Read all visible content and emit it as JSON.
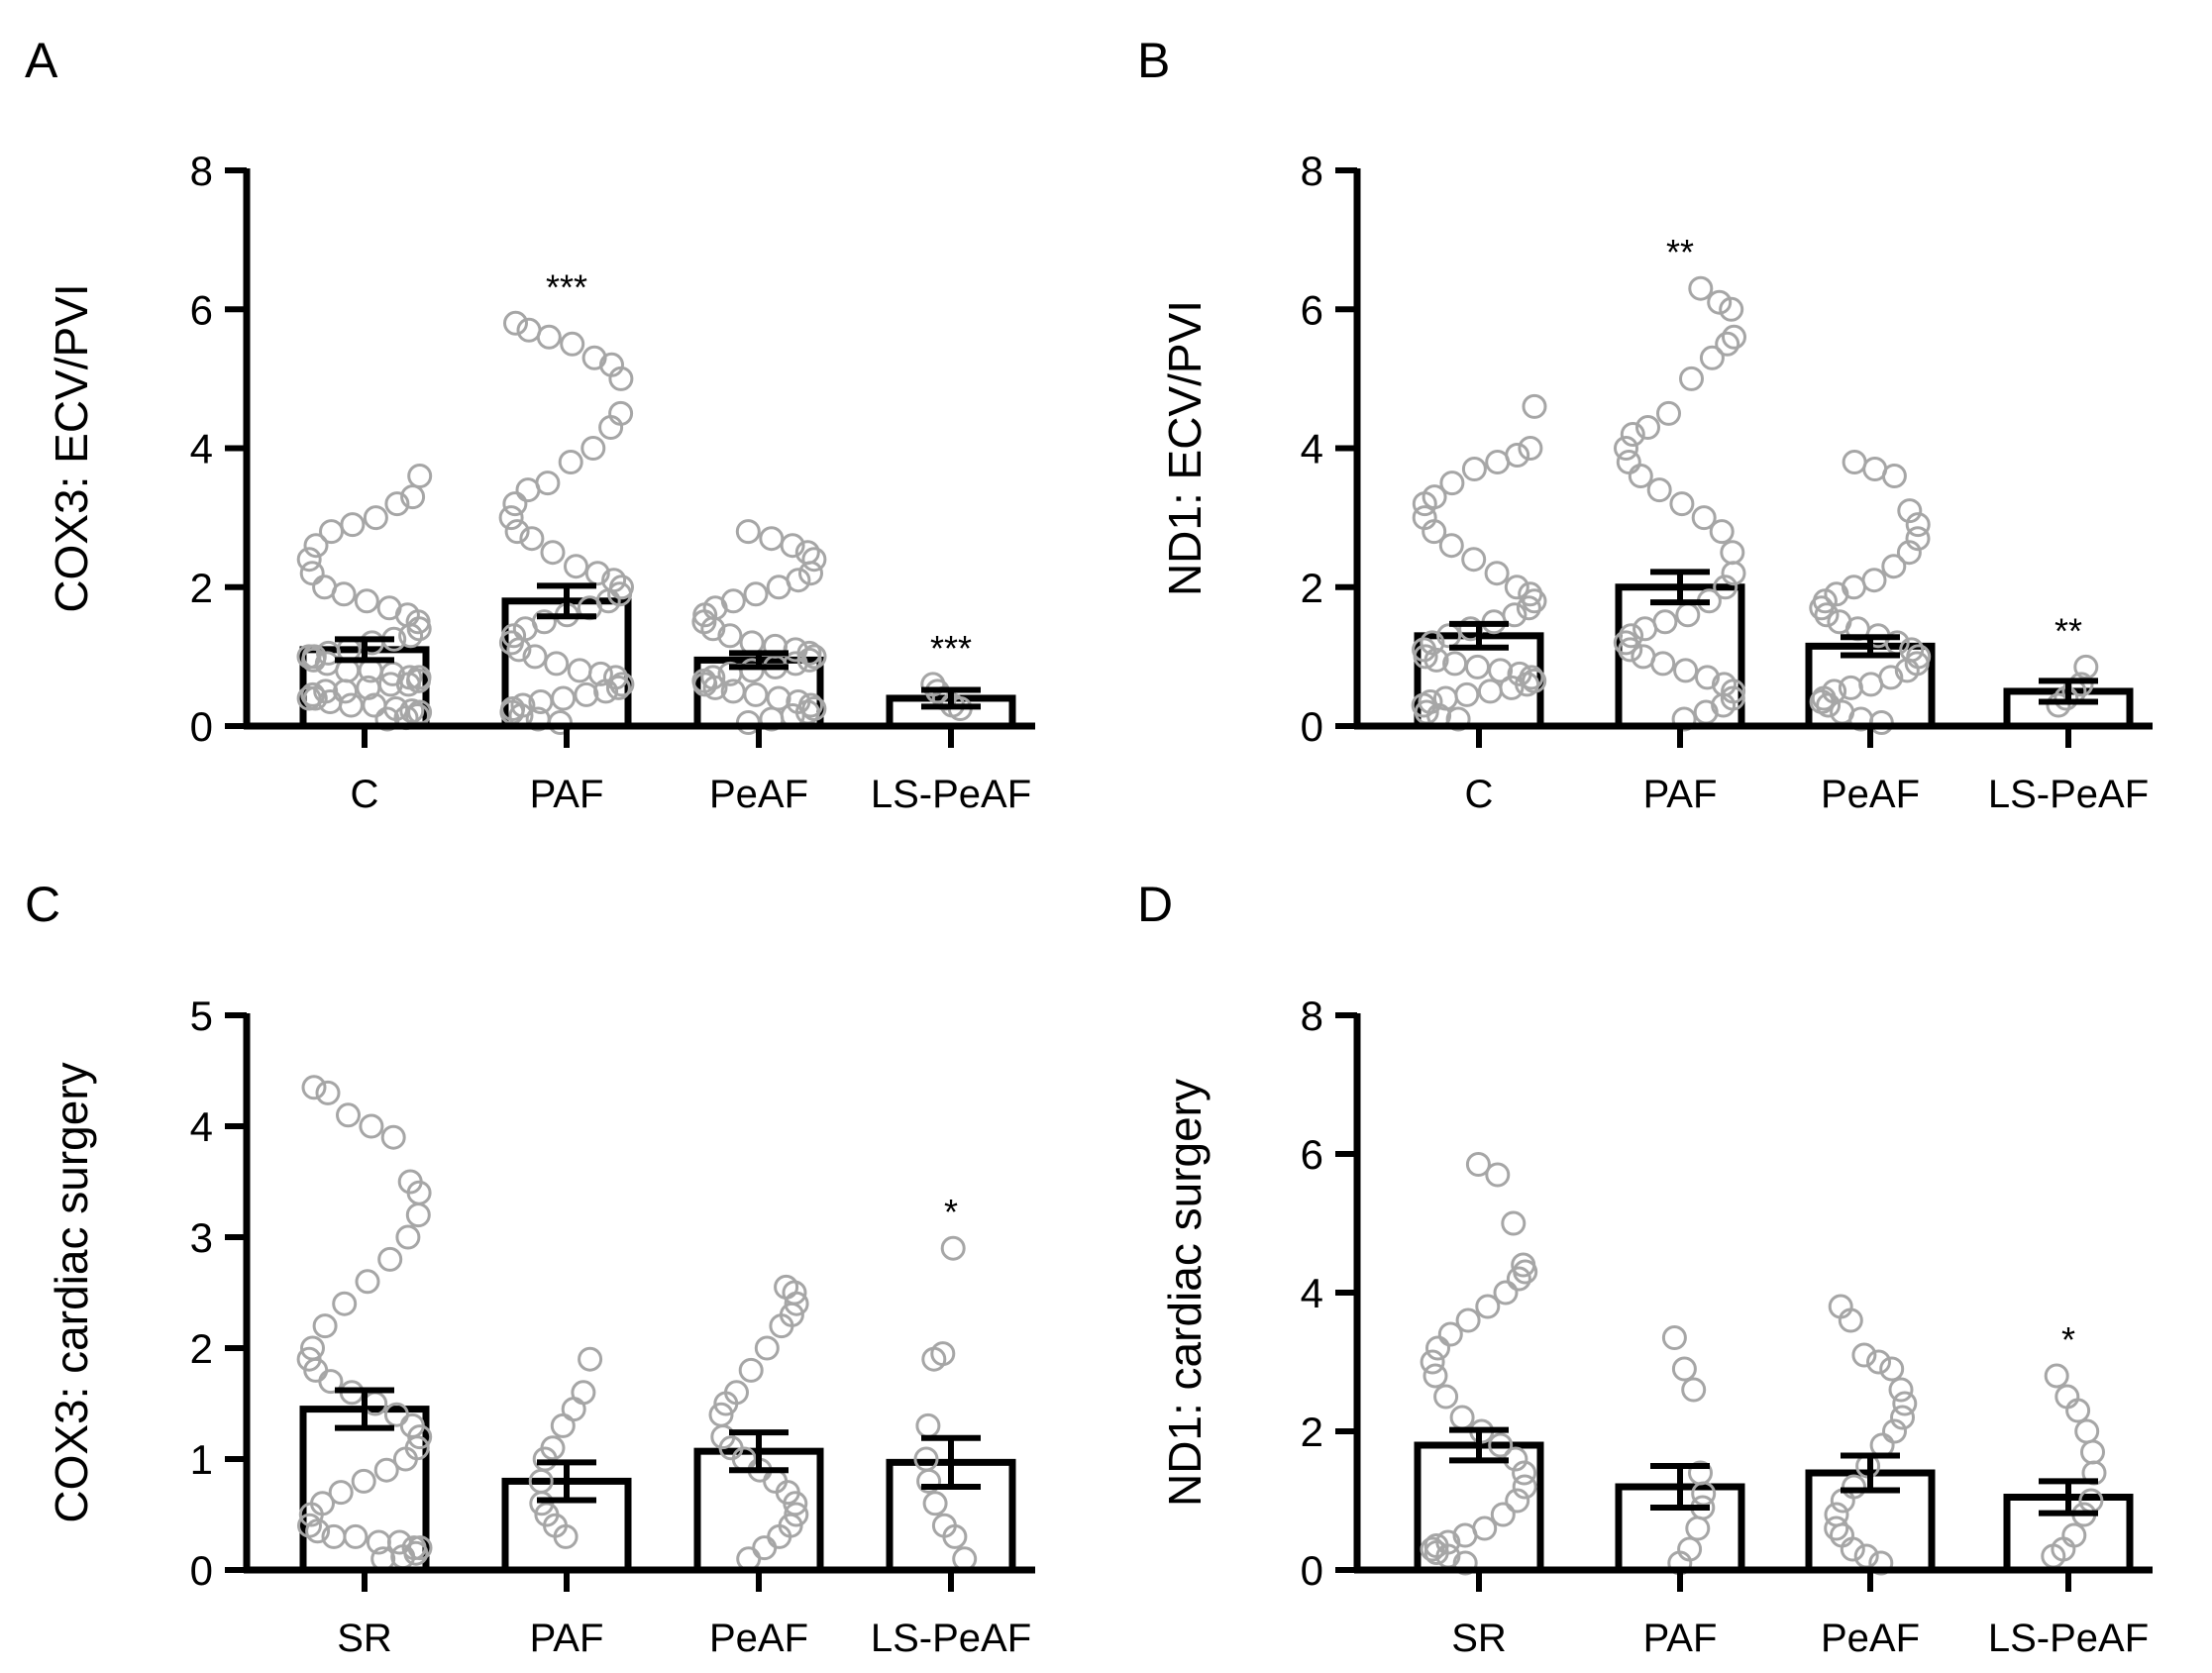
{
  "chart_data": [
    {
      "type": "bar",
      "panel": "A",
      "ylabel": "COX3: ECV/PVI",
      "ylim": [
        0,
        8
      ],
      "yticks": [
        0,
        2,
        4,
        6,
        8
      ],
      "categories": [
        "C",
        "PAF",
        "PeAF",
        "LS-PeAF"
      ],
      "means": [
        1.1,
        1.8,
        0.95,
        0.4
      ],
      "sem": [
        0.15,
        0.22,
        0.1,
        0.12
      ],
      "significance": [
        "",
        "***",
        "",
        "***"
      ],
      "points": [
        [
          0.1,
          0.12,
          0.15,
          0.2,
          0.22,
          0.25,
          0.3,
          0.3,
          0.35,
          0.4,
          0.4,
          0.45,
          0.5,
          0.5,
          0.55,
          0.6,
          0.6,
          0.65,
          0.7,
          0.7,
          0.75,
          0.8,
          0.8,
          0.9,
          0.95,
          1.0,
          1.0,
          1.05,
          1.1,
          1.2,
          1.25,
          1.3,
          1.4,
          1.5,
          1.6,
          1.7,
          1.8,
          1.9,
          2.0,
          2.2,
          2.4,
          2.6,
          2.8,
          2.9,
          3.0,
          3.2,
          3.3,
          3.6
        ],
        [
          0.05,
          0.1,
          0.15,
          0.2,
          0.25,
          0.3,
          0.35,
          0.4,
          0.45,
          0.5,
          0.55,
          0.6,
          0.7,
          0.75,
          0.8,
          0.9,
          1.0,
          1.1,
          1.2,
          1.3,
          1.4,
          1.5,
          1.6,
          1.7,
          1.8,
          1.9,
          2.0,
          2.1,
          2.2,
          2.3,
          2.5,
          2.7,
          2.8,
          3.0,
          3.2,
          3.4,
          3.5,
          3.8,
          4.0,
          4.3,
          4.5,
          5.0,
          5.2,
          5.3,
          5.5,
          5.6,
          5.7,
          5.8
        ],
        [
          0.05,
          0.1,
          0.15,
          0.2,
          0.25,
          0.3,
          0.35,
          0.4,
          0.45,
          0.5,
          0.55,
          0.6,
          0.65,
          0.7,
          0.75,
          0.8,
          0.85,
          0.9,
          0.95,
          1.0,
          1.05,
          1.1,
          1.15,
          1.2,
          1.3,
          1.4,
          1.5,
          1.6,
          1.7,
          1.8,
          1.9,
          2.0,
          2.1,
          2.2,
          2.4,
          2.5,
          2.6,
          2.7,
          2.8
        ],
        [
          0.25,
          0.3,
          0.4,
          0.5,
          0.6
        ]
      ]
    },
    {
      "type": "bar",
      "panel": "B",
      "ylabel": "ND1: ECV/PVI",
      "ylim": [
        0,
        8
      ],
      "yticks": [
        0,
        2,
        4,
        6,
        8
      ],
      "categories": [
        "C",
        "PAF",
        "PeAF",
        "LS-PeAF"
      ],
      "means": [
        1.3,
        2.0,
        1.15,
        0.5
      ],
      "sem": [
        0.17,
        0.22,
        0.13,
        0.15
      ],
      "significance": [
        "",
        "**",
        "",
        "**"
      ],
      "points": [
        [
          0.1,
          0.15,
          0.2,
          0.3,
          0.35,
          0.4,
          0.45,
          0.5,
          0.55,
          0.6,
          0.65,
          0.7,
          0.75,
          0.8,
          0.85,
          0.9,
          0.95,
          1.0,
          1.1,
          1.2,
          1.3,
          1.4,
          1.5,
          1.6,
          1.7,
          1.8,
          1.9,
          2.0,
          2.2,
          2.4,
          2.6,
          2.8,
          3.0,
          3.2,
          3.3,
          3.5,
          3.7,
          3.8,
          3.9,
          4.0,
          4.6
        ],
        [
          0.1,
          0.2,
          0.3,
          0.4,
          0.5,
          0.6,
          0.7,
          0.8,
          0.9,
          1.0,
          1.1,
          1.2,
          1.3,
          1.4,
          1.5,
          1.6,
          1.8,
          2.0,
          2.2,
          2.5,
          2.8,
          3.0,
          3.2,
          3.4,
          3.6,
          3.8,
          4.0,
          4.2,
          4.3,
          4.5,
          5.0,
          5.3,
          5.5,
          5.6,
          6.0,
          6.1,
          6.3
        ],
        [
          0.05,
          0.1,
          0.2,
          0.3,
          0.35,
          0.4,
          0.5,
          0.55,
          0.6,
          0.7,
          0.8,
          0.9,
          1.0,
          1.1,
          1.2,
          1.3,
          1.4,
          1.5,
          1.6,
          1.7,
          1.8,
          1.9,
          2.0,
          2.1,
          2.3,
          2.5,
          2.7,
          2.9,
          3.1,
          3.6,
          3.7,
          3.8
        ],
        [
          0.3,
          0.4,
          0.5,
          0.6,
          0.85
        ]
      ]
    },
    {
      "type": "bar",
      "panel": "C",
      "ylabel": "COX3: cardiac surgery",
      "ylim": [
        0,
        5
      ],
      "yticks": [
        0,
        1,
        2,
        3,
        4,
        5
      ],
      "categories": [
        "SR",
        "PAF",
        "PeAF",
        "LS-PeAF"
      ],
      "means": [
        1.45,
        0.8,
        1.07,
        0.97
      ],
      "sem": [
        0.17,
        0.17,
        0.17,
        0.22
      ],
      "significance": [
        "",
        "",
        "",
        "*"
      ],
      "points": [
        [
          0.1,
          0.12,
          0.15,
          0.2,
          0.2,
          0.25,
          0.25,
          0.3,
          0.3,
          0.35,
          0.4,
          0.5,
          0.6,
          0.7,
          0.8,
          0.9,
          1.0,
          1.1,
          1.2,
          1.3,
          1.4,
          1.5,
          1.6,
          1.7,
          1.8,
          1.9,
          2.0,
          2.2,
          2.4,
          2.6,
          2.8,
          3.0,
          3.2,
          3.4,
          3.5,
          3.9,
          4.0,
          4.1,
          4.3,
          4.35
        ],
        [
          0.3,
          0.4,
          0.5,
          0.6,
          0.8,
          1.0,
          1.1,
          1.3,
          1.45,
          1.6,
          1.9
        ],
        [
          0.1,
          0.2,
          0.3,
          0.4,
          0.5,
          0.6,
          0.7,
          0.8,
          0.9,
          1.0,
          1.1,
          1.2,
          1.4,
          1.5,
          1.6,
          1.8,
          2.0,
          2.2,
          2.3,
          2.4,
          2.5,
          2.55
        ],
        [
          0.1,
          0.3,
          0.4,
          0.6,
          0.8,
          1.0,
          1.3,
          1.9,
          1.95,
          2.9
        ]
      ]
    },
    {
      "type": "bar",
      "panel": "D",
      "ylabel": "ND1: cardiac surgery",
      "ylim": [
        0,
        8
      ],
      "yticks": [
        0,
        2,
        4,
        6,
        8
      ],
      "categories": [
        "SR",
        "PAF",
        "PeAF",
        "LS-PeAF"
      ],
      "means": [
        1.8,
        1.2,
        1.4,
        1.05
      ],
      "sem": [
        0.22,
        0.3,
        0.25,
        0.23
      ],
      "significance": [
        "",
        "",
        "",
        "*"
      ],
      "points": [
        [
          0.1,
          0.2,
          0.25,
          0.3,
          0.35,
          0.4,
          0.5,
          0.6,
          0.8,
          1.0,
          1.2,
          1.4,
          1.6,
          1.8,
          2.0,
          2.2,
          2.5,
          2.8,
          3.0,
          3.2,
          3.4,
          3.6,
          3.8,
          4.0,
          4.2,
          4.3,
          4.4,
          5.0,
          5.7,
          5.85
        ],
        [
          0.1,
          0.3,
          0.6,
          0.9,
          1.1,
          1.4,
          2.6,
          2.9,
          3.35
        ],
        [
          0.1,
          0.2,
          0.3,
          0.5,
          0.6,
          0.8,
          1.0,
          1.2,
          1.5,
          1.8,
          2.0,
          2.2,
          2.4,
          2.6,
          2.9,
          3.0,
          3.1,
          3.6,
          3.8
        ],
        [
          0.2,
          0.3,
          0.5,
          0.8,
          1.0,
          1.4,
          1.7,
          2.0,
          2.3,
          2.5,
          2.8
        ]
      ]
    }
  ],
  "panel_letters": [
    "A",
    "B",
    "C",
    "D"
  ],
  "colors": {
    "axis": "#000000",
    "bar_fill": "#ffffff",
    "bar_stroke": "#000000",
    "point_stroke": "#a6a6a6",
    "point_fill": "#ffffff"
  }
}
